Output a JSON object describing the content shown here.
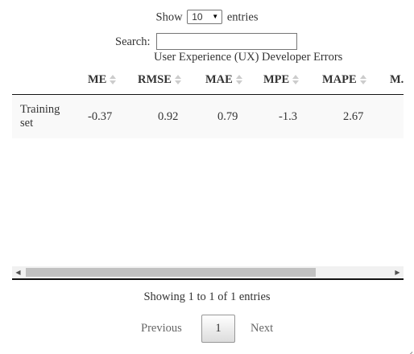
{
  "length": {
    "prefix": "Show",
    "selected": "10",
    "suffix": "entries"
  },
  "search": {
    "label": "Search:",
    "value": ""
  },
  "table": {
    "caption": "User Experience (UX) Developer Errors",
    "columns": [
      "ME",
      "RMSE",
      "MAE",
      "MPE",
      "MAPE",
      "M..."
    ],
    "rows": [
      {
        "name": "Training set",
        "values": [
          "-0.37",
          "0.92",
          "0.79",
          "-1.3",
          "2.67"
        ]
      }
    ]
  },
  "info": "Showing 1 to 1 of 1 entries",
  "pagination": {
    "previous": "Previous",
    "current": "1",
    "next": "Next"
  },
  "icons": {
    "select_arrow": "chevron-down-icon",
    "sort": "sort-both-icon",
    "scroll_left": "triangle-left-icon",
    "scroll_right": "triangle-right-icon",
    "resize": "resize-grip-icon"
  }
}
